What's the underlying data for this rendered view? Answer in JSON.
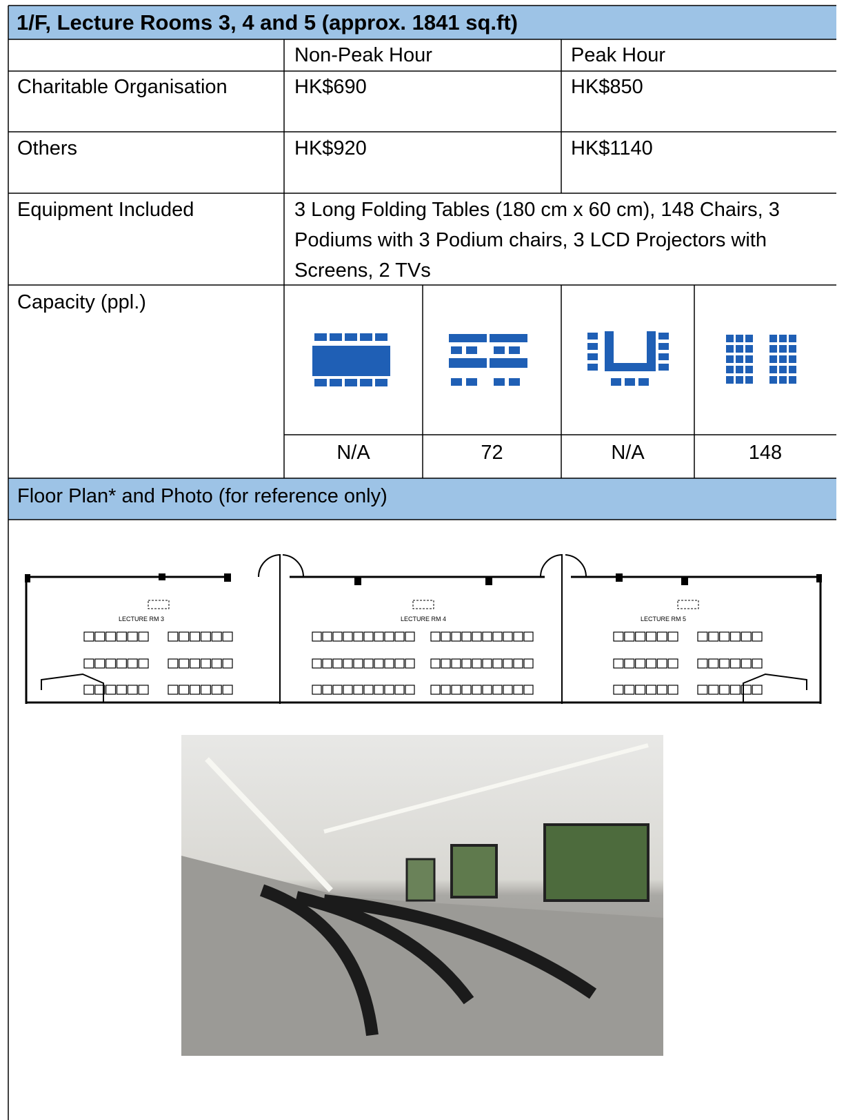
{
  "title": "1/F, Lecture Rooms 3, 4 and 5 (approx. 1841 sq.ft)",
  "table": {
    "header": [
      "Non-Peak Hour",
      "Peak Hour"
    ],
    "rows": [
      [
        "Charitable Organisation",
        "HK$690",
        "HK$850"
      ],
      [
        "Others",
        "HK$920",
        "HK$1140"
      ]
    ]
  },
  "equipment": {
    "label": "Equipment Included",
    "text": "3 Long Folding Tables (180 cm x 60 cm), 148 Chairs, 3 Podiums with 3 Podium chairs, 3 LCD Projectors with Screens, 2 TVs"
  },
  "capacity": {
    "label": "Capacity (ppl.)",
    "values": [
      "N/A",
      72,
      "N/A",
      148
    ]
  },
  "floor_plan": {
    "heading": "Floor Plan* and Photo (for reference only)",
    "rooms": [
      "LECTURE RM 3",
      "LECTURE RM 4",
      "LECTURE RM 5"
    ]
  }
}
